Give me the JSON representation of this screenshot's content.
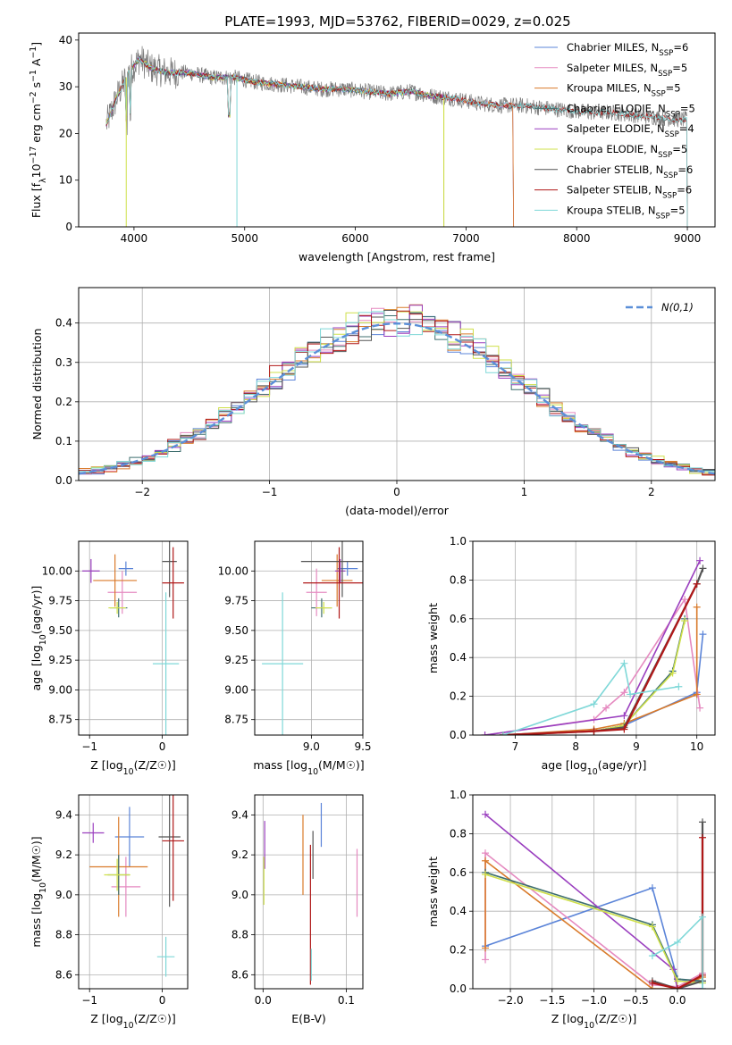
{
  "figure_title": "PLATE=1993, MJD=53762, FIBERID=0029, z=0.025",
  "chart_data": [
    {
      "id": "spectrum",
      "type": "line",
      "xlabel": "wavelength [Angstrom, rest frame]",
      "ylabel": "Flux [f_λ10^-17 erg cm^-2 s^-1 A^-1]",
      "xlim": [
        3500,
        9250
      ],
      "ylim": [
        0,
        41.5
      ],
      "xticks": [
        4000,
        5000,
        6000,
        7000,
        8000,
        9000
      ],
      "yticks": [
        0,
        10,
        20,
        30,
        40
      ],
      "legend_position": "top-right",
      "legend": [
        {
          "label": "Chabrier MILES, N_SSP=6",
          "color": "#5b84d8"
        },
        {
          "label": "Salpeter MILES, N_SSP=5",
          "color": "#e58ac0"
        },
        {
          "label": "Kroupa MILES, N_SSP=5",
          "color": "#d97a2a"
        },
        {
          "label": "Chabrier ELODIE, N_SSP=5",
          "color": "#3f6f6f"
        },
        {
          "label": "Salpeter ELODIE, N_SSP=4",
          "color": "#9a3fbf"
        },
        {
          "label": "Kroupa ELODIE, N_SSP=5",
          "color": "#cfe04a"
        },
        {
          "label": "Chabrier STELIB, N_SSP=6",
          "color": "#555555"
        },
        {
          "label": "Salpeter STELIB, N_SSP=6",
          "color": "#b01818"
        },
        {
          "label": "Kroupa STELIB, N_SSP=5",
          "color": "#7fd8d8"
        }
      ],
      "data_continuum": [
        [
          3750,
          22
        ],
        [
          3850,
          28
        ],
        [
          3950,
          33
        ],
        [
          4050,
          36
        ],
        [
          4150,
          34
        ],
        [
          4300,
          33
        ],
        [
          4500,
          33
        ],
        [
          4700,
          32
        ],
        [
          4900,
          32
        ],
        [
          5100,
          31
        ],
        [
          5300,
          30.5
        ],
        [
          5500,
          30
        ],
        [
          5700,
          29.5
        ],
        [
          5900,
          29.5
        ],
        [
          6100,
          29
        ],
        [
          6300,
          28.5
        ],
        [
          6500,
          29
        ],
        [
          6700,
          28
        ],
        [
          6900,
          27.5
        ],
        [
          7100,
          26.5
        ],
        [
          7300,
          26
        ],
        [
          7500,
          26
        ],
        [
          7700,
          25.5
        ],
        [
          7900,
          25
        ],
        [
          8100,
          24.5
        ],
        [
          8300,
          24.5
        ],
        [
          8500,
          24
        ],
        [
          8700,
          23.5
        ],
        [
          8900,
          23
        ]
      ],
      "model_extent_A": {
        "MILES": [
          3750,
          7430
        ],
        "ELODIE": [
          3750,
          6800
        ],
        "STELIB": [
          3750,
          9000
        ]
      }
    },
    {
      "id": "residuals",
      "type": "histogram",
      "xlabel": "(data-model)/error",
      "ylabel": "Normed distribution",
      "xlim": [
        -2.5,
        2.5
      ],
      "ylim": [
        0,
        0.49
      ],
      "xticks": [
        -2,
        -1,
        0,
        1,
        2
      ],
      "yticks": [
        0.0,
        0.1,
        0.2,
        0.3,
        0.4
      ],
      "grid": true,
      "legend_position": "top-right",
      "legend": [
        {
          "label": "N(0,1)",
          "color": "#5b8fd8",
          "style": "dashed"
        }
      ],
      "bin_width": 0.1
    },
    {
      "id": "age_vs_Z",
      "type": "errorbar",
      "xlabel": "Z [log10(Z/Z☉)]",
      "ylabel": "age  [log10(age/yr)]",
      "xlim": [
        -1.15,
        0.35
      ],
      "ylim": [
        8.62,
        10.25
      ],
      "xticks": [
        -1,
        0
      ],
      "yticks": [
        8.75,
        9.0,
        9.25,
        9.5,
        9.75,
        10.0
      ],
      "grid": true,
      "points": [
        {
          "x": -0.5,
          "y": 10.02,
          "ex": 0.1,
          "ey": 0.06,
          "color": "#5b84d8"
        },
        {
          "x": -0.55,
          "y": 9.82,
          "ex": 0.2,
          "ey": 0.18,
          "color": "#e58ac0"
        },
        {
          "x": -0.65,
          "y": 9.92,
          "ex": 0.3,
          "ey": 0.22,
          "color": "#d97a2a"
        },
        {
          "x": -0.6,
          "y": 9.69,
          "ex": 0.12,
          "ey": 0.08,
          "color": "#3f6f6f"
        },
        {
          "x": -0.98,
          "y": 10.0,
          "ex": 0.12,
          "ey": 0.1,
          "color": "#9a3fbf"
        },
        {
          "x": -0.62,
          "y": 9.69,
          "ex": 0.12,
          "ey": 0.05,
          "color": "#cfe04a"
        },
        {
          "x": 0.1,
          "y": 10.08,
          "ex": 0.1,
          "ey": 0.3,
          "color": "#555555"
        },
        {
          "x": 0.15,
          "y": 9.9,
          "ex": 0.15,
          "ey": 0.3,
          "color": "#b01818"
        },
        {
          "x": 0.05,
          "y": 9.22,
          "ex": 0.18,
          "ey": 0.6,
          "color": "#7fd8d8"
        }
      ]
    },
    {
      "id": "age_vs_mass",
      "type": "errorbar",
      "xlabel": "mass [log10(M/M☉)]",
      "ylabel": "",
      "xlim": [
        8.45,
        9.5
      ],
      "ylim": [
        8.62,
        10.25
      ],
      "xticks": [
        9.0,
        9.5
      ],
      "yticks": [
        8.75,
        9.0,
        9.25,
        9.5,
        9.75,
        10.0
      ],
      "grid": true,
      "points": [
        {
          "x": 9.35,
          "y": 10.02,
          "ex": 0.1,
          "ey": 0.06,
          "color": "#5b84d8"
        },
        {
          "x": 9.05,
          "y": 9.82,
          "ex": 0.1,
          "ey": 0.2,
          "color": "#e58ac0"
        },
        {
          "x": 9.25,
          "y": 9.92,
          "ex": 0.15,
          "ey": 0.22,
          "color": "#d97a2a"
        },
        {
          "x": 9.1,
          "y": 9.69,
          "ex": 0.1,
          "ey": 0.08,
          "color": "#3f6f6f"
        },
        {
          "x": 9.28,
          "y": 10.0,
          "ex": 0.05,
          "ey": 0.1,
          "color": "#9a3fbf"
        },
        {
          "x": 9.12,
          "y": 9.69,
          "ex": 0.08,
          "ey": 0.05,
          "color": "#cfe04a"
        },
        {
          "x": 9.3,
          "y": 10.08,
          "ex": 0.4,
          "ey": 0.3,
          "color": "#555555"
        },
        {
          "x": 9.27,
          "y": 9.9,
          "ex": 0.35,
          "ey": 0.3,
          "color": "#b01818"
        },
        {
          "x": 8.72,
          "y": 9.22,
          "ex": 0.2,
          "ey": 0.6,
          "color": "#7fd8d8"
        }
      ]
    },
    {
      "id": "massweight_vs_age",
      "type": "line",
      "xlabel": "age  [log10(age/yr)]",
      "ylabel": "mass weight",
      "xlim": [
        6.3,
        10.3
      ],
      "ylim": [
        0,
        1.0
      ],
      "xticks": [
        7,
        8,
        9,
        10
      ],
      "yticks": [
        0.0,
        0.2,
        0.4,
        0.6,
        0.8,
        1.0
      ],
      "grid": true,
      "series": [
        {
          "color": "#5b84d8",
          "points": [
            [
              6.8,
              0.0
            ],
            [
              8.3,
              0.02
            ],
            [
              8.8,
              0.05
            ],
            [
              10.0,
              0.22
            ],
            [
              10.1,
              0.52
            ]
          ]
        },
        {
          "color": "#e58ac0",
          "points": [
            [
              6.5,
              0.0
            ],
            [
              8.3,
              0.08
            ],
            [
              8.5,
              0.14
            ],
            [
              8.8,
              0.22
            ],
            [
              9.8,
              0.7
            ],
            [
              10.05,
              0.14
            ]
          ]
        },
        {
          "color": "#d97a2a",
          "points": [
            [
              6.8,
              0.0
            ],
            [
              8.3,
              0.03
            ],
            [
              8.8,
              0.06
            ],
            [
              10.0,
              0.21
            ],
            [
              10.0,
              0.66
            ]
          ]
        },
        {
          "color": "#3f6f6f",
          "points": [
            [
              6.8,
              0.0
            ],
            [
              8.3,
              0.02
            ],
            [
              8.8,
              0.05
            ],
            [
              9.6,
              0.33
            ],
            [
              9.8,
              0.6
            ]
          ]
        },
        {
          "color": "#9a3fbf",
          "points": [
            [
              6.5,
              0.0
            ],
            [
              8.8,
              0.1
            ],
            [
              10.05,
              0.9
            ]
          ]
        },
        {
          "color": "#cfe04a",
          "points": [
            [
              6.8,
              0.0
            ],
            [
              8.3,
              0.02
            ],
            [
              8.8,
              0.05
            ],
            [
              9.6,
              0.32
            ],
            [
              9.8,
              0.59
            ]
          ]
        },
        {
          "color": "#555555",
          "points": [
            [
              6.8,
              0.0
            ],
            [
              8.3,
              0.02
            ],
            [
              8.8,
              0.04
            ],
            [
              10.0,
              0.78
            ],
            [
              10.1,
              0.86
            ]
          ]
        },
        {
          "color": "#b01818",
          "points": [
            [
              6.8,
              0.0
            ],
            [
              8.3,
              0.02
            ],
            [
              8.8,
              0.03
            ],
            [
              10.0,
              0.78
            ]
          ]
        },
        {
          "color": "#7fd8d8",
          "points": [
            [
              6.8,
              0.0
            ],
            [
              8.3,
              0.16
            ],
            [
              8.8,
              0.37
            ],
            [
              8.9,
              0.21
            ],
            [
              9.7,
              0.25
            ]
          ]
        }
      ]
    },
    {
      "id": "mass_vs_Z",
      "type": "errorbar",
      "xlabel": "Z [log10(Z/Z☉)]",
      "ylabel": "mass [log10(M/M☉)]",
      "xlim": [
        -1.15,
        0.35
      ],
      "ylim": [
        8.53,
        9.5
      ],
      "xticks": [
        -1,
        0
      ],
      "yticks": [
        8.6,
        8.8,
        9.0,
        9.2,
        9.4
      ],
      "grid": true,
      "points": [
        {
          "x": -0.45,
          "y": 9.29,
          "ex": 0.2,
          "ey": 0.15,
          "color": "#5b84d8"
        },
        {
          "x": -0.5,
          "y": 9.04,
          "ex": 0.2,
          "ey": 0.15,
          "color": "#e58ac0"
        },
        {
          "x": -0.6,
          "y": 9.14,
          "ex": 0.4,
          "ey": 0.25,
          "color": "#d97a2a"
        },
        {
          "x": -0.6,
          "y": 9.1,
          "ex": 0.15,
          "ey": 0.1,
          "color": "#3f6f6f"
        },
        {
          "x": -0.95,
          "y": 9.31,
          "ex": 0.15,
          "ey": 0.05,
          "color": "#9a3fbf"
        },
        {
          "x": -0.62,
          "y": 9.1,
          "ex": 0.18,
          "ey": 0.08,
          "color": "#cfe04a"
        },
        {
          "x": 0.1,
          "y": 9.29,
          "ex": 0.15,
          "ey": 0.35,
          "color": "#555555"
        },
        {
          "x": 0.15,
          "y": 9.27,
          "ex": 0.15,
          "ey": 0.3,
          "color": "#b01818"
        },
        {
          "x": 0.05,
          "y": 8.69,
          "ex": 0.12,
          "ey": 0.1,
          "color": "#7fd8d8"
        }
      ]
    },
    {
      "id": "mass_vs_EBV",
      "type": "errorbar",
      "xlabel": "E(B-V)",
      "ylabel": "",
      "xlim": [
        -0.01,
        0.12
      ],
      "ylim": [
        8.53,
        9.5
      ],
      "xticks": [
        0.0,
        0.1
      ],
      "yticks": [
        8.6,
        8.8,
        9.0,
        9.2,
        9.4
      ],
      "grid": true,
      "points": [
        {
          "x": 0.07,
          "y": 9.35,
          "ex": 0,
          "ey": 0.11,
          "color": "#5b84d8"
        },
        {
          "x": 0.113,
          "y": 9.06,
          "ex": 0,
          "ey": 0.17,
          "color": "#e58ac0"
        },
        {
          "x": 0.048,
          "y": 9.2,
          "ex": 0,
          "ey": 0.2,
          "color": "#d97a2a"
        },
        {
          "x": 0.002,
          "y": 9.25,
          "ex": 0,
          "ey": 0.12,
          "color": "#9a3fbf"
        },
        {
          "x": 0.001,
          "y": 9.07,
          "ex": 0,
          "ey": 0.12,
          "color": "#cfe04a"
        },
        {
          "x": 0.06,
          "y": 9.2,
          "ex": 0,
          "ey": 0.12,
          "color": "#555555"
        },
        {
          "x": 0.057,
          "y": 8.9,
          "ex": 0,
          "ey": 0.35,
          "color": "#b01818"
        },
        {
          "x": 0.058,
          "y": 8.65,
          "ex": 0,
          "ey": 0.08,
          "color": "#7fd8d8"
        }
      ]
    },
    {
      "id": "massweight_vs_Z",
      "type": "line",
      "xlabel": "Z [log10(Z/Z☉)]",
      "ylabel": "mass weight",
      "xlim": [
        -2.45,
        0.45
      ],
      "ylim": [
        0,
        1.0
      ],
      "xticks": [
        -2.0,
        -1.5,
        -1.0,
        -0.5,
        0.0
      ],
      "yticks": [
        0.0,
        0.2,
        0.4,
        0.6,
        0.8,
        1.0
      ],
      "grid": true,
      "series": [
        {
          "color": "#5b84d8",
          "points": [
            [
              -2.3,
              0.22
            ],
            [
              -0.3,
              0.52
            ],
            [
              0.0,
              0.05
            ],
            [
              0.3,
              0.03
            ]
          ]
        },
        {
          "color": "#e58ac0",
          "points": [
            [
              -2.3,
              0.15
            ],
            [
              -2.3,
              0.7
            ],
            [
              -0.3,
              0.02
            ],
            [
              0.0,
              0.01
            ],
            [
              0.3,
              0.08
            ]
          ]
        },
        {
          "color": "#d97a2a",
          "points": [
            [
              -2.3,
              0.21
            ],
            [
              -2.3,
              0.66
            ],
            [
              -0.3,
              0.0
            ],
            [
              0.0,
              0.0
            ],
            [
              0.3,
              0.06
            ]
          ]
        },
        {
          "color": "#3f6f6f",
          "points": [
            [
              -2.3,
              0.6
            ],
            [
              -0.3,
              0.33
            ],
            [
              0.0,
              0.05
            ],
            [
              0.3,
              0.04
            ]
          ]
        },
        {
          "color": "#9a3fbf",
          "points": [
            [
              -2.3,
              0.9
            ],
            [
              -0.05,
              0.1
            ],
            [
              0.0,
              0.0
            ],
            [
              0.3,
              0.0
            ]
          ]
        },
        {
          "color": "#cfe04a",
          "points": [
            [
              -2.3,
              0.59
            ],
            [
              -0.3,
              0.32
            ],
            [
              0.0,
              0.04
            ],
            [
              0.3,
              0.03
            ]
          ]
        },
        {
          "color": "#555555",
          "points": [
            [
              -0.3,
              0.04
            ],
            [
              0.0,
              0.0
            ],
            [
              0.3,
              0.04
            ],
            [
              0.3,
              0.86
            ]
          ]
        },
        {
          "color": "#b01818",
          "points": [
            [
              -0.3,
              0.03
            ],
            [
              0.0,
              0.0
            ],
            [
              0.3,
              0.07
            ],
            [
              0.3,
              0.78
            ]
          ]
        },
        {
          "color": "#7fd8d8",
          "points": [
            [
              -0.3,
              0.17
            ],
            [
              0.0,
              0.24
            ],
            [
              0.3,
              0.37
            ],
            [
              0.3,
              0.0
            ]
          ]
        }
      ]
    }
  ]
}
